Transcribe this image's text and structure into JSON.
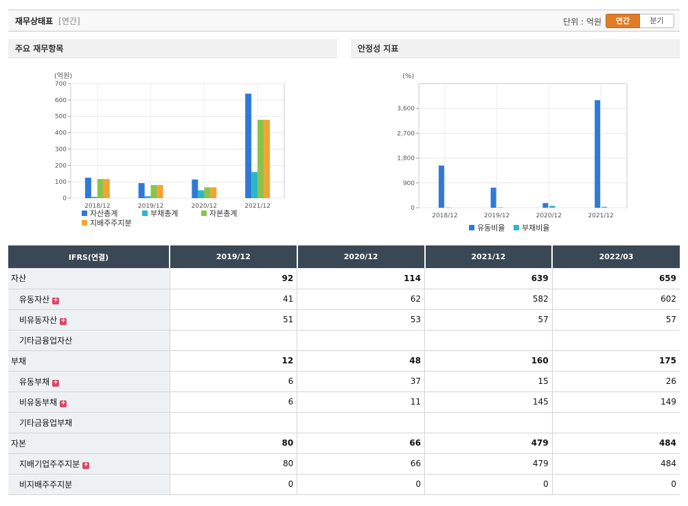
{
  "header": {
    "title": "재무상태표",
    "period": "[연간]",
    "unit_label": "단위 : 억원",
    "toggle_annual": "연간",
    "toggle_quarter": "분기",
    "accent": "#e07b28"
  },
  "panels": {
    "left_title": "주요 재무항목",
    "right_title": "안정성 지표"
  },
  "chart_data": [
    {
      "type": "bar",
      "title": "",
      "ylabel": "(억원)",
      "categories": [
        "2018/12",
        "2019/12",
        "2020/12",
        "2021/12"
      ],
      "ylim": [
        0,
        700
      ],
      "yticks": [
        0,
        100,
        200,
        300,
        400,
        500,
        600,
        700
      ],
      "ytick_labels": [
        "0",
        "100",
        "200",
        "300",
        "400",
        "500",
        "600",
        "700"
      ],
      "grid": true,
      "legend": "bottom",
      "series": [
        {
          "name": "자산총계",
          "color": "#2f7ad8",
          "values": [
            125,
            92,
            114,
            639
          ]
        },
        {
          "name": "부채총계",
          "color": "#2ab7c9",
          "values": [
            8,
            12,
            48,
            160
          ]
        },
        {
          "name": "자본총계",
          "color": "#8bc34a",
          "values": [
            117,
            80,
            66,
            479
          ]
        },
        {
          "name": "지배주주지분",
          "color": "#f3a533",
          "values": [
            117,
            80,
            66,
            479
          ]
        }
      ]
    },
    {
      "type": "bar",
      "title": "",
      "ylabel": "(%)",
      "categories": [
        "2018/12",
        "2019/12",
        "2020/12",
        "2021/12"
      ],
      "ylim": [
        0,
        4500
      ],
      "yticks": [
        0,
        900,
        1800,
        2700,
        3600
      ],
      "ytick_labels": [
        "0",
        "900",
        "1,800",
        "2,700",
        "3,600"
      ],
      "grid": true,
      "legend": "bottom",
      "series": [
        {
          "name": "유동비율",
          "color": "#2f7ad8",
          "values": [
            1530,
            730,
            170,
            3900
          ]
        },
        {
          "name": "부채비율",
          "color": "#2ab7c9",
          "values": [
            7,
            15,
            70,
            33
          ]
        }
      ]
    }
  ],
  "table": {
    "corner": "IFRS(연결)",
    "columns": [
      "2019/12",
      "2020/12",
      "2021/12",
      "2022/03"
    ],
    "rows": [
      {
        "label": "자산",
        "level": "main",
        "expand": false,
        "values": [
          "92",
          "114",
          "639",
          "659"
        ]
      },
      {
        "label": "유동자산",
        "level": "sub",
        "expand": true,
        "values": [
          "41",
          "62",
          "582",
          "602"
        ]
      },
      {
        "label": "비유동자산",
        "level": "sub",
        "expand": true,
        "values": [
          "51",
          "53",
          "57",
          "57"
        ]
      },
      {
        "label": "기타금융업자산",
        "level": "sub",
        "expand": false,
        "values": [
          "",
          "",
          "",
          ""
        ]
      },
      {
        "label": "부채",
        "level": "main",
        "expand": false,
        "values": [
          "12",
          "48",
          "160",
          "175"
        ]
      },
      {
        "label": "유동부채",
        "level": "sub",
        "expand": true,
        "values": [
          "6",
          "37",
          "15",
          "26"
        ]
      },
      {
        "label": "비유동부채",
        "level": "sub",
        "expand": true,
        "values": [
          "6",
          "11",
          "145",
          "149"
        ]
      },
      {
        "label": "기타금융업부채",
        "level": "sub",
        "expand": false,
        "values": [
          "",
          "",
          "",
          ""
        ]
      },
      {
        "label": "자본",
        "level": "main",
        "expand": false,
        "values": [
          "80",
          "66",
          "479",
          "484"
        ]
      },
      {
        "label": "지배기업주주지분",
        "level": "sub",
        "expand": true,
        "values": [
          "80",
          "66",
          "479",
          "484"
        ]
      },
      {
        "label": "비지배주주지분",
        "level": "sub",
        "expand": false,
        "values": [
          "0",
          "0",
          "0",
          "0"
        ]
      }
    ]
  }
}
